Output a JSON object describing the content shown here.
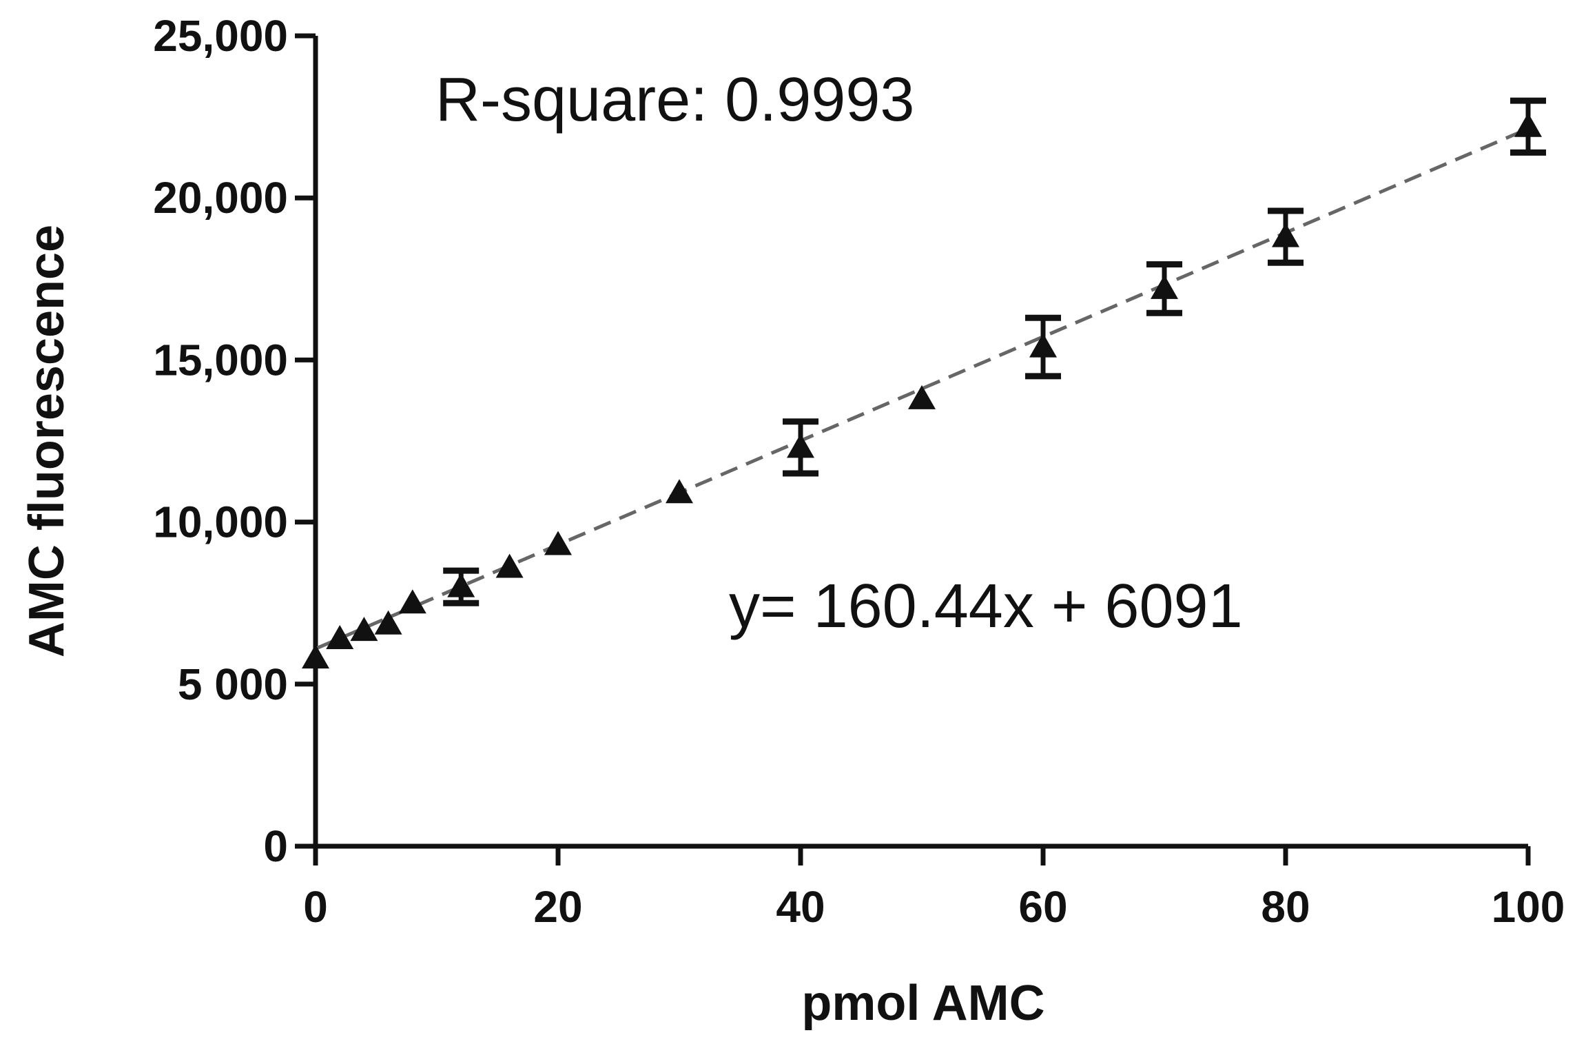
{
  "chart_data": {
    "type": "scatter",
    "xlabel": "pmol AMC",
    "ylabel": "AMC fluorescence",
    "xlim": [
      0,
      100
    ],
    "ylim": [
      0,
      25000
    ],
    "x_ticks": [
      0,
      20,
      40,
      60,
      80,
      100
    ],
    "x_tick_labels": [
      "0",
      "20",
      "40",
      "60",
      "80",
      "100"
    ],
    "y_ticks": [
      0,
      5000,
      10000,
      15000,
      20000,
      25000
    ],
    "y_tick_labels": [
      "0",
      "5 000",
      "10,000",
      "15,000",
      "20,000",
      "25,000"
    ],
    "grid": false,
    "marker": "triangle",
    "marker_color": "#111111",
    "line_color": "#666666",
    "annotations": {
      "r_square": "R-square: 0.9993",
      "equation": "y= 160.44x + 6091"
    },
    "fit": {
      "slope": 160.44,
      "intercept": 6091,
      "x_range": [
        0,
        100
      ],
      "style": "dashed"
    },
    "points": [
      {
        "x": 0,
        "y": 5800
      },
      {
        "x": 2,
        "y": 6400
      },
      {
        "x": 4,
        "y": 6650
      },
      {
        "x": 6,
        "y": 6850
      },
      {
        "x": 8,
        "y": 7500
      },
      {
        "x": 12,
        "y": 8000,
        "err": 500
      },
      {
        "x": 16,
        "y": 8600
      },
      {
        "x": 20,
        "y": 9300
      },
      {
        "x": 30,
        "y": 10900
      },
      {
        "x": 40,
        "y": 12300,
        "err": 800
      },
      {
        "x": 50,
        "y": 13800
      },
      {
        "x": 60,
        "y": 15400,
        "err": 900
      },
      {
        "x": 70,
        "y": 17200,
        "err": 750
      },
      {
        "x": 80,
        "y": 18800,
        "err": 800
      },
      {
        "x": 100,
        "y": 22200,
        "err": 800
      }
    ]
  }
}
